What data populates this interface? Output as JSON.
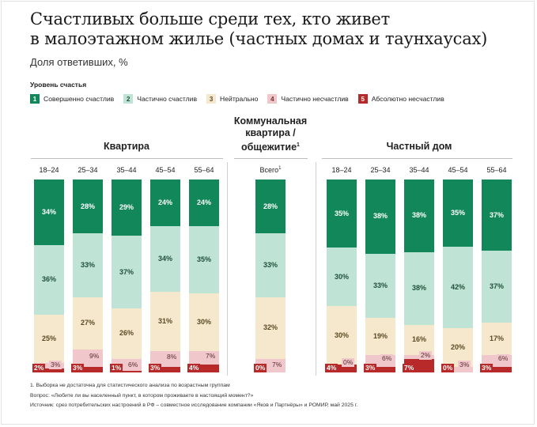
{
  "header": {
    "title_line1": "Счастливых больше среди тех, кто живет",
    "title_line2": "в малоэтажном жилье (частных домах и таунхаусах)",
    "subtitle": "Доля ответивших, %"
  },
  "legend": {
    "title": "Уровень счастья",
    "items": [
      {
        "num": "1",
        "label": "Совершенно счастлив",
        "color": "#12875a",
        "text_color": "#ffffff"
      },
      {
        "num": "2",
        "label": "Частично счастлив",
        "color": "#bfe3d4",
        "text_color": "#1f4f3b"
      },
      {
        "num": "3",
        "label": "Нейтрально",
        "color": "#f5e8cc",
        "text_color": "#5a4a25"
      },
      {
        "num": "4",
        "label": "Частично несчастлив",
        "color": "#f0c8cc",
        "text_color": "#7a2b33"
      },
      {
        "num": "5",
        "label": "Абсолютно несчастлив",
        "color": "#b82a2a",
        "text_color": "#ffffff"
      }
    ]
  },
  "chart_data": {
    "type": "bar",
    "stacked": true,
    "normalized": true,
    "series_names": [
      "Совершенно счастлив",
      "Частично счастлив",
      "Нейтрально",
      "Частично несчастлив",
      "Абсолютно несчастлив"
    ],
    "groups": [
      {
        "title": "Квартира",
        "title_lines": [
          "Квартира"
        ],
        "categories": [
          "18–24",
          "25–34",
          "35–44",
          "45–54",
          "55–64"
        ],
        "values": [
          [
            34,
            36,
            25,
            3,
            2
          ],
          [
            28,
            33,
            27,
            9,
            3
          ],
          [
            29,
            37,
            26,
            6,
            1
          ],
          [
            24,
            34,
            31,
            8,
            3
          ],
          [
            24,
            35,
            30,
            7,
            4
          ]
        ]
      },
      {
        "title": "Коммунальная квартира / общежитие",
        "title_lines": [
          "Коммунальная",
          "квартира /",
          "общежитие"
        ],
        "title_sup": "1",
        "categories": [
          "Всего"
        ],
        "category_sup": "1",
        "values": [
          [
            28,
            33,
            32,
            7,
            0
          ]
        ]
      },
      {
        "title": "Частный дом",
        "title_lines": [
          "Частный дом"
        ],
        "categories": [
          "18–24",
          "25–34",
          "35–44",
          "45–54",
          "55–64"
        ],
        "values": [
          [
            35,
            30,
            30,
            0,
            4
          ],
          [
            38,
            33,
            19,
            6,
            3
          ],
          [
            38,
            38,
            16,
            2,
            7
          ],
          [
            35,
            42,
            20,
            3,
            0
          ],
          [
            37,
            37,
            17,
            6,
            3
          ]
        ]
      }
    ]
  },
  "footnotes": {
    "note1": "1.    Выборка не достаточна для статистического анализа по возрастным группам",
    "question": "Вопрос: «Любите ли вы населенный пункт, в котором проживаете в настоящий момент?»",
    "source": "Источник: срез потребительских настроений в РФ – совместное исследование компании «Яков и Партнёры» и РОМИР, май 2025 г."
  }
}
